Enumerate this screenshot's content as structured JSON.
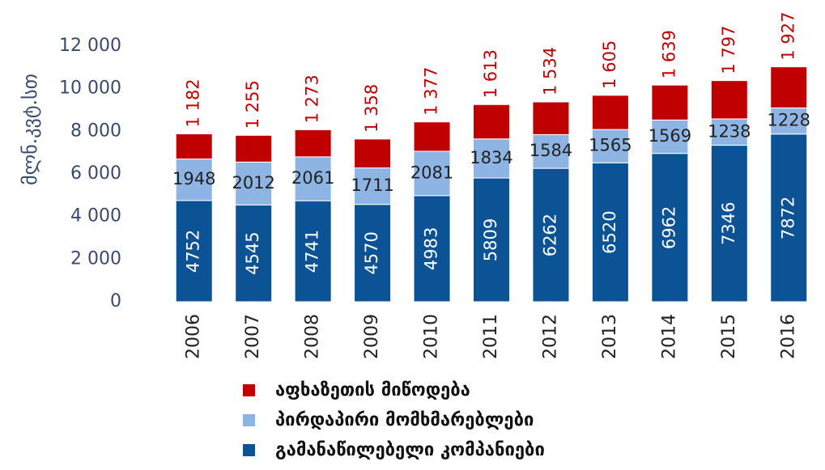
{
  "chart_data": {
    "type": "stacked_bar",
    "y_label": "მლნ.კვტ.სთ",
    "categories": [
      "2006",
      "2007",
      "2008",
      "2009",
      "2010",
      "2011",
      "2012",
      "2013",
      "2014",
      "2015",
      "2016"
    ],
    "series": [
      {
        "name": "გამანაწილებელი კომპანიები",
        "color": "#0b5394",
        "values": [
          4752,
          4545,
          4741,
          4570,
          4983,
          5809,
          6262,
          6520,
          6962,
          7346,
          7872
        ]
      },
      {
        "name": "პირდაპირი მომხმარებლები",
        "color": "#8db4e2",
        "values": [
          1948,
          2012,
          2061,
          1711,
          2081,
          1834,
          1584,
          1565,
          1569,
          1238,
          1228
        ]
      },
      {
        "name": "აფხაზეთის მიწოდება",
        "color": "#c00000",
        "values": [
          1182,
          1255,
          1273,
          1358,
          1377,
          1613,
          1534,
          1605,
          1639,
          1797,
          1927
        ],
        "value_labels": [
          "1 182",
          "1 255",
          "1 273",
          "1 358",
          "1 377",
          "1 613",
          "1 534",
          "1 605",
          "1 639",
          "1 797",
          "1 927"
        ]
      }
    ],
    "ylim": [
      0,
      12000
    ],
    "yticks": [
      0,
      {
        "value": 2000,
        "label": "2 000"
      },
      {
        "value": 4000,
        "label": "4 000"
      },
      {
        "value": 6000,
        "label": "6 000"
      },
      {
        "value": 8000,
        "label": "8 000"
      },
      {
        "value": 10000,
        "label": "10 000"
      },
      {
        "value": 12000,
        "label": "12 000"
      }
    ],
    "legend": "bottom"
  }
}
